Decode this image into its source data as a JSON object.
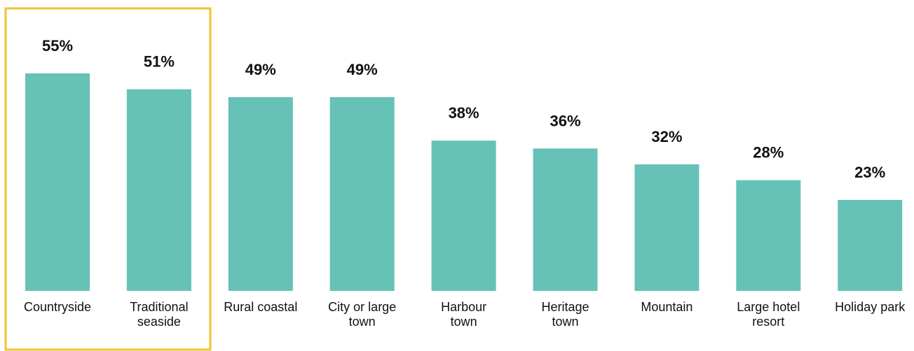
{
  "chart_data": {
    "type": "bar",
    "categories": [
      "Countryside",
      "Traditional seaside",
      "Rural coastal",
      "City or large town",
      "Harbour town",
      "Heritage town",
      "Mountain",
      "Large hotel resort",
      "Holiday park"
    ],
    "category_lines": [
      [
        "Countryside"
      ],
      [
        "Traditional",
        "seaside"
      ],
      [
        "Rural coastal"
      ],
      [
        "City or large",
        "town"
      ],
      [
        "Harbour",
        "town"
      ],
      [
        "Heritage",
        "town"
      ],
      [
        "Mountain"
      ],
      [
        "Large hotel",
        "resort"
      ],
      [
        "Holiday park"
      ]
    ],
    "values": [
      55,
      51,
      49,
      49,
      38,
      36,
      32,
      28,
      23
    ],
    "value_labels": [
      "55%",
      "51%",
      "49%",
      "49%",
      "38%",
      "36%",
      "32%",
      "28%",
      "23%"
    ],
    "ylim": [
      0,
      55
    ],
    "grid": false,
    "highlighted_categories": [
      "Countryside",
      "Traditional seaside"
    ],
    "colors": {
      "bar": "#66c1b6",
      "highlight_border": "#f2c230",
      "text": "#111111"
    }
  }
}
